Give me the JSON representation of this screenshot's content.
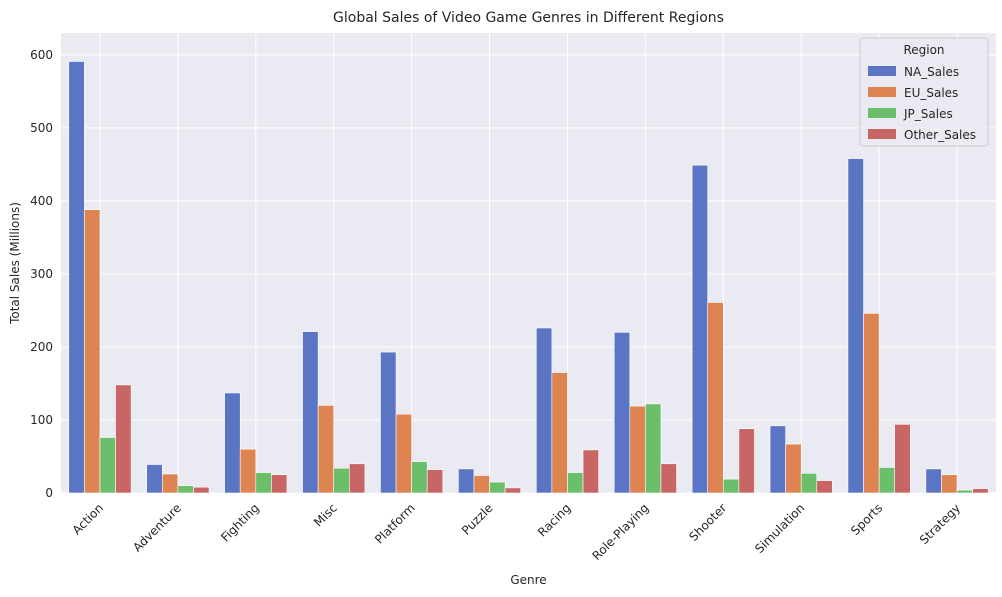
{
  "chart_data": {
    "type": "bar",
    "title": "Global Sales of Video Game Genres in Different Regions",
    "xlabel": "Genre",
    "ylabel": "Total Sales (Millions)",
    "ylim": [
      0,
      630
    ],
    "yticks": [
      0,
      100,
      200,
      300,
      400,
      500,
      600
    ],
    "grid": true,
    "legend_position": "top-right",
    "legend_title": "Region",
    "categories": [
      "Action",
      "Adventure",
      "Fighting",
      "Misc",
      "Platform",
      "Puzzle",
      "Racing",
      "Role-Playing",
      "Shooter",
      "Simulation",
      "Sports",
      "Strategy"
    ],
    "series": [
      {
        "name": "NA_Sales",
        "color": "#5975c4",
        "values": [
          591,
          39,
          137,
          221,
          193,
          33,
          226,
          220,
          449,
          92,
          458,
          33
        ]
      },
      {
        "name": "EU_Sales",
        "color": "#dd8452",
        "values": [
          388,
          26,
          60,
          120,
          108,
          24,
          165,
          119,
          261,
          67,
          246,
          25
        ]
      },
      {
        "name": "JP_Sales",
        "color": "#6bbf6b",
        "values": [
          76,
          10,
          28,
          34,
          43,
          15,
          28,
          122,
          19,
          27,
          35,
          4
        ]
      },
      {
        "name": "Other_Sales",
        "color": "#c86565",
        "values": [
          148,
          8,
          25,
          40,
          32,
          7,
          59,
          40,
          88,
          17,
          94,
          6
        ]
      }
    ]
  }
}
